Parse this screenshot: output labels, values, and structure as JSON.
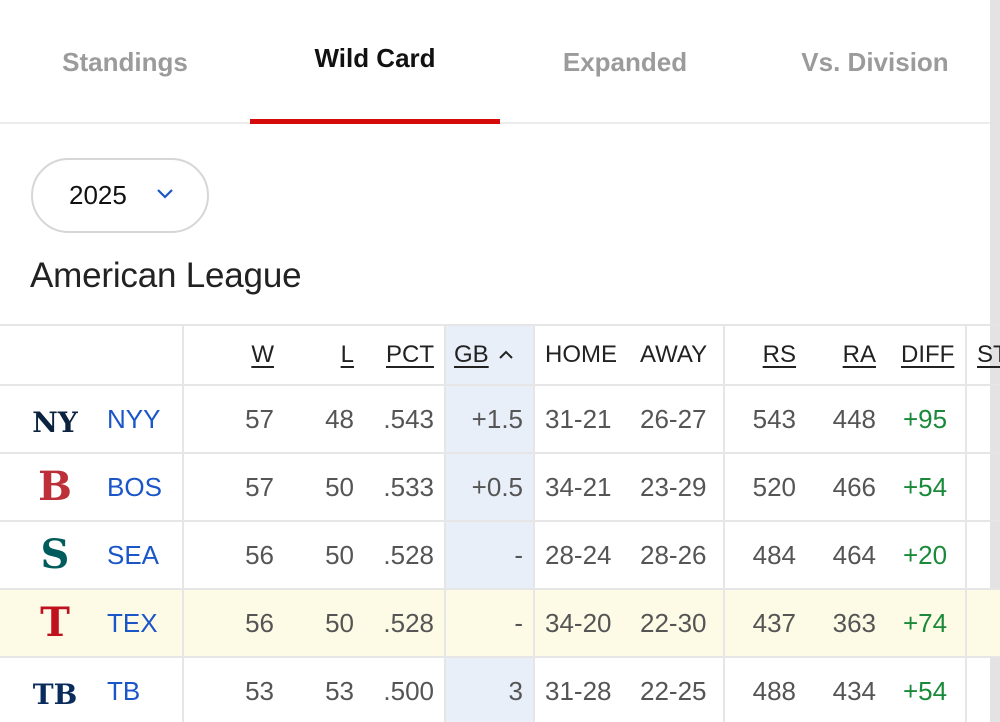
{
  "tabs": [
    {
      "label": "Standings",
      "active": false
    },
    {
      "label": "Wild Card",
      "active": true
    },
    {
      "label": "Expanded",
      "active": false
    },
    {
      "label": "Vs. Division",
      "active": false
    }
  ],
  "year_select": {
    "value": "2025"
  },
  "league": {
    "title": "American League"
  },
  "table": {
    "headers": {
      "w": "W",
      "l": "L",
      "pct": "PCT",
      "gb": "GB",
      "home": "HOME",
      "away": "AWAY",
      "rs": "RS",
      "ra": "RA",
      "diff": "DIFF",
      "strk": "ST"
    },
    "rows": [
      {
        "team": "NYY",
        "w": "57",
        "l": "48",
        "pct": ".543",
        "gb": "+1.5",
        "home": "31-21",
        "away": "26-27",
        "rs": "543",
        "ra": "448",
        "diff": "+95",
        "logo_color": "#0c2340",
        "logo_text": "NY"
      },
      {
        "team": "BOS",
        "w": "57",
        "l": "50",
        "pct": ".533",
        "gb": "+0.5",
        "home": "34-21",
        "away": "23-29",
        "rs": "520",
        "ra": "466",
        "diff": "+54",
        "logo_color": "#bd3039",
        "logo_text": "B"
      },
      {
        "team": "SEA",
        "w": "56",
        "l": "50",
        "pct": ".528",
        "gb": "-",
        "home": "28-24",
        "away": "28-26",
        "rs": "484",
        "ra": "464",
        "diff": "+20",
        "logo_color": "#005c5c",
        "logo_text": "S"
      },
      {
        "team": "TEX",
        "w": "56",
        "l": "50",
        "pct": ".528",
        "gb": "-",
        "home": "34-20",
        "away": "22-30",
        "rs": "437",
        "ra": "363",
        "diff": "+74",
        "logo_color": "#c0111f",
        "logo_text": "T"
      },
      {
        "team": "TB",
        "w": "53",
        "l": "53",
        "pct": ".500",
        "gb": "3",
        "home": "31-28",
        "away": "22-25",
        "rs": "488",
        "ra": "434",
        "diff": "+54",
        "logo_color": "#092c5c",
        "logo_text": "TB"
      }
    ]
  },
  "colors": {
    "accent": "#d50a0a",
    "link": "#1a56c8",
    "positive": "#1a8a3a",
    "highlight_row": "#fdfbe6"
  }
}
